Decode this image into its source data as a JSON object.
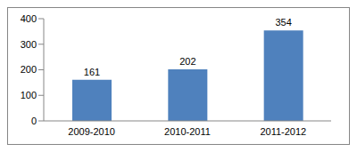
{
  "chart_data": {
    "type": "bar",
    "categories": [
      "2009-2010",
      "2010-2011",
      "2011-2012"
    ],
    "values": [
      161,
      202,
      354
    ],
    "color": "#4f81bd",
    "ylim": [
      0,
      400
    ],
    "yticks": [
      0,
      100,
      200,
      300,
      400
    ],
    "grid": false,
    "data_labels": true
  }
}
